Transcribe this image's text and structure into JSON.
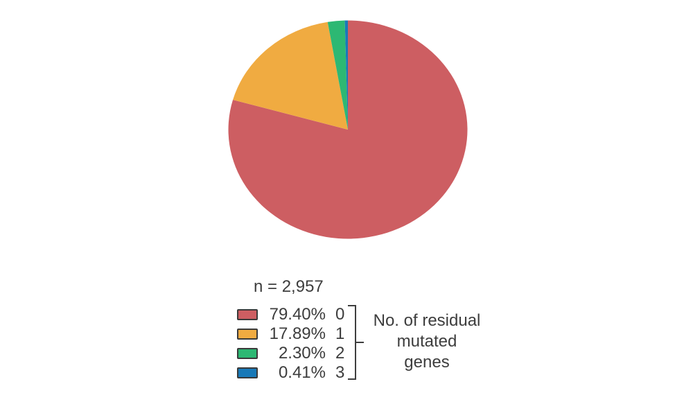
{
  "figure": {
    "background_color": "#ffffff",
    "text_color": "#3d3d3d"
  },
  "chart_data": {
    "type": "pie",
    "sample_size_label": "n = 2,957",
    "sample_size": 2957,
    "start_angle_deg": 0,
    "direction": "clockwise",
    "categories": [
      "0",
      "1",
      "2",
      "3"
    ],
    "values_percent": [
      79.4,
      17.89,
      2.3,
      0.41
    ],
    "slices": [
      {
        "category": "0",
        "percent": 79.4,
        "percent_label": "79.40%",
        "color": "#cd5e62"
      },
      {
        "category": "1",
        "percent": 17.89,
        "percent_label": "17.89%",
        "color": "#f0ab41"
      },
      {
        "category": "2",
        "percent": 2.3,
        "percent_label": "2.30%",
        "color": "#2db873"
      },
      {
        "category": "3",
        "percent": 0.41,
        "percent_label": "0.41%",
        "color": "#1879b8"
      }
    ],
    "legend_position": "below-chart-left",
    "legend_group_label": "No. of residual mutated genes"
  },
  "legend": {
    "swatch_border_color": "#3a3a3a",
    "group_label_lines": [
      "No. of residual",
      "mutated",
      "genes"
    ]
  }
}
